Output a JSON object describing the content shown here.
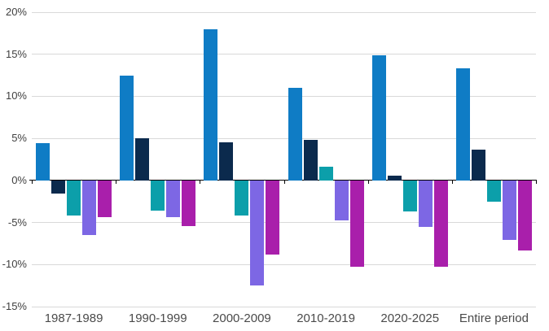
{
  "chart_data": {
    "type": "bar",
    "title": "",
    "xlabel": "",
    "ylabel": "",
    "categories": [
      "1987-1989",
      "1990-1999",
      "2000-2009",
      "2010-2019",
      "2020-2025",
      "Entire period"
    ],
    "series": [
      {
        "name": "blue",
        "color": "#0f7cc5",
        "values": [
          4.4,
          12.5,
          18.0,
          11.0,
          14.9,
          13.3
        ]
      },
      {
        "name": "dark-navy",
        "color": "#0b2a4d",
        "values": [
          -1.5,
          5.0,
          4.5,
          4.8,
          0.6,
          3.7
        ]
      },
      {
        "name": "teal",
        "color": "#0c9faa",
        "values": [
          -4.1,
          -3.5,
          -4.1,
          1.6,
          -3.6,
          -2.5
        ]
      },
      {
        "name": "purple",
        "color": "#7d67e4",
        "values": [
          -6.4,
          -4.3,
          -12.4,
          -4.7,
          -5.5,
          -7.0
        ]
      },
      {
        "name": "magenta",
        "color": "#a91fab",
        "values": [
          -4.3,
          -5.4,
          -8.8,
          -10.2,
          -10.2,
          -8.3
        ]
      }
    ],
    "ylim": [
      -15,
      20
    ],
    "y_tick_step": 5,
    "y_tick_labels": [
      "20%",
      "15%",
      "10%",
      "5%",
      "0%",
      "-5%",
      "-10%",
      "-15%"
    ],
    "grid": true,
    "legend_position": "none"
  },
  "colors": {
    "gridline": "#d9d9d9",
    "zero_axis": "#000000",
    "y_tick_label": "#404040",
    "category_label": "#4a4a4a",
    "background": "#ffffff"
  }
}
